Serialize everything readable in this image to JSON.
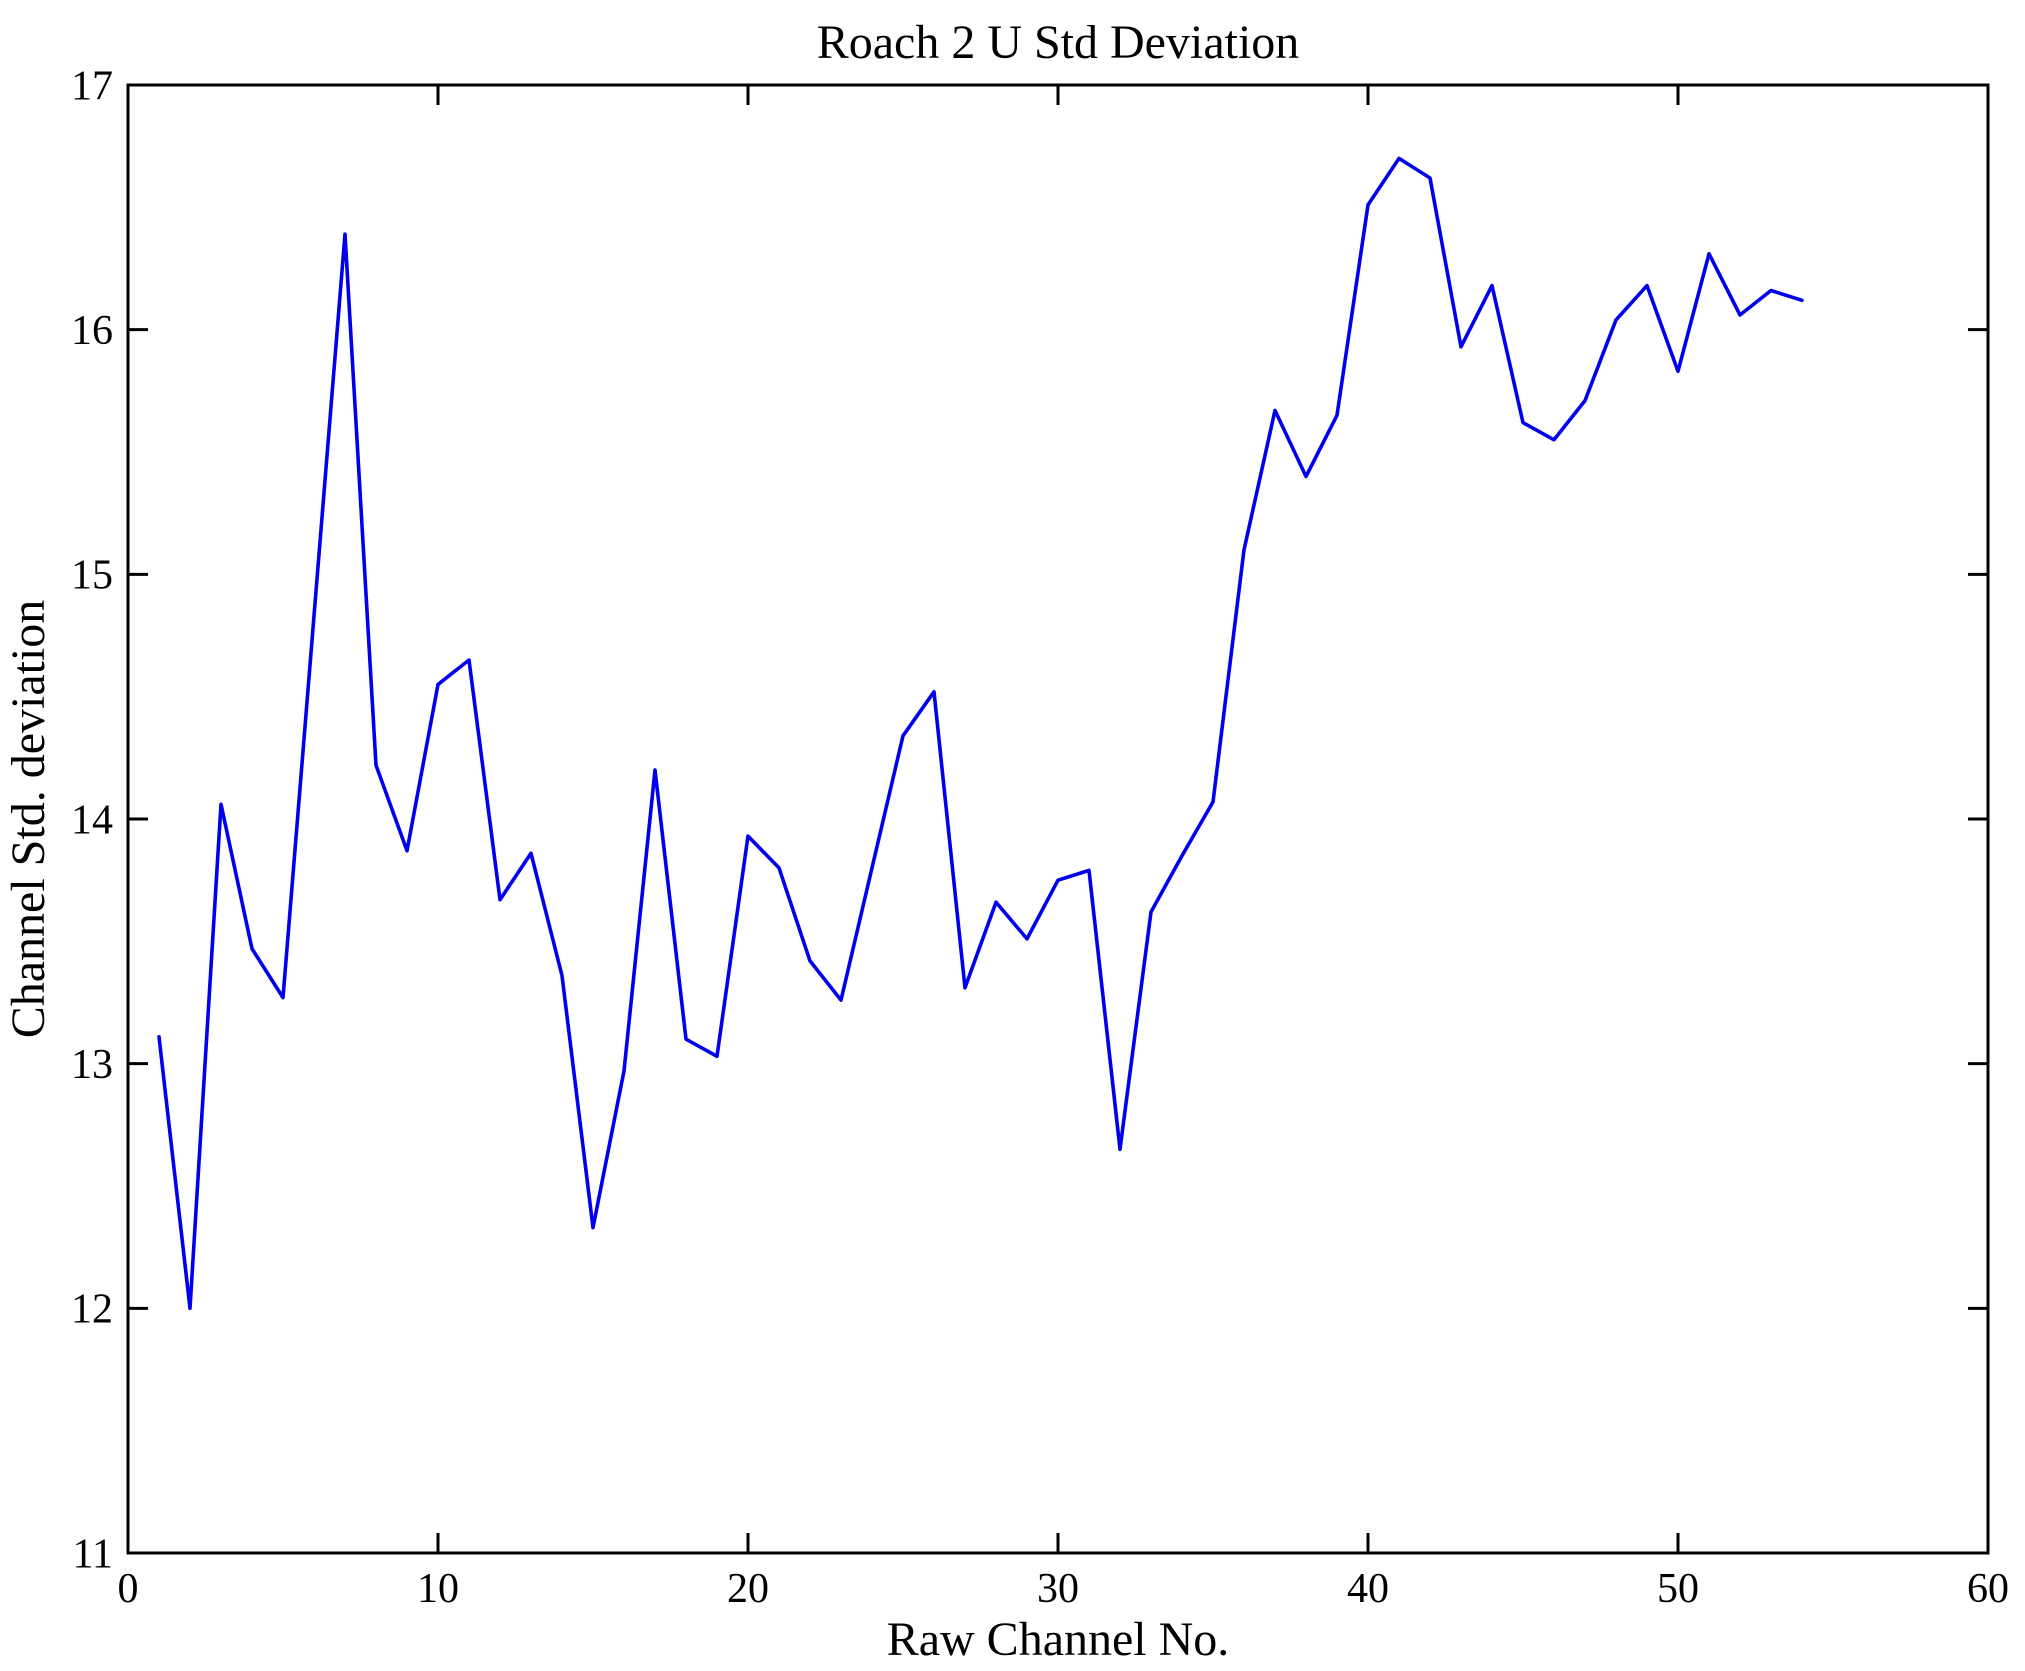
{
  "figure": {
    "background_color": "#ffffff",
    "axis_color": "#000000",
    "line_color": "#0000ee"
  },
  "chart_data": {
    "type": "line",
    "title": "Roach 2 U Std Deviation",
    "xlabel": "Raw Channel No.",
    "ylabel": "Channel Std. deviation",
    "xlim": [
      0,
      60
    ],
    "ylim": [
      11,
      17
    ],
    "x_ticks": [
      0,
      10,
      20,
      30,
      40,
      50,
      60
    ],
    "y_ticks": [
      11,
      12,
      13,
      14,
      15,
      16,
      17
    ],
    "grid": false,
    "legend": null,
    "series_name": "Channel Std. deviation vs Raw Channel No.",
    "x": [
      1,
      2,
      3,
      4,
      5,
      6,
      7,
      8,
      9,
      10,
      11,
      12,
      13,
      14,
      15,
      16,
      17,
      18,
      19,
      20,
      21,
      22,
      23,
      24,
      25,
      26,
      27,
      28,
      29,
      30,
      31,
      32,
      33,
      34,
      35,
      36,
      37,
      38,
      39,
      40,
      41,
      42,
      43,
      44,
      45,
      46,
      47,
      48,
      49,
      50,
      51,
      52,
      53,
      54
    ],
    "values": [
      13.11,
      12.0,
      14.06,
      13.47,
      13.27,
      14.83,
      16.39,
      14.22,
      13.87,
      14.55,
      14.65,
      13.67,
      13.86,
      13.36,
      12.33,
      12.97,
      14.2,
      13.1,
      13.03,
      13.93,
      13.8,
      13.42,
      13.26,
      13.8,
      14.34,
      14.52,
      13.31,
      13.66,
      13.51,
      13.75,
      13.79,
      12.65,
      13.62,
      13.85,
      14.07,
      15.1,
      15.67,
      15.4,
      15.65,
      16.51,
      16.7,
      16.62,
      15.93,
      16.18,
      15.62,
      15.55,
      15.71,
      16.04,
      16.18,
      15.83,
      16.31,
      16.06,
      16.16,
      16.12
    ]
  }
}
